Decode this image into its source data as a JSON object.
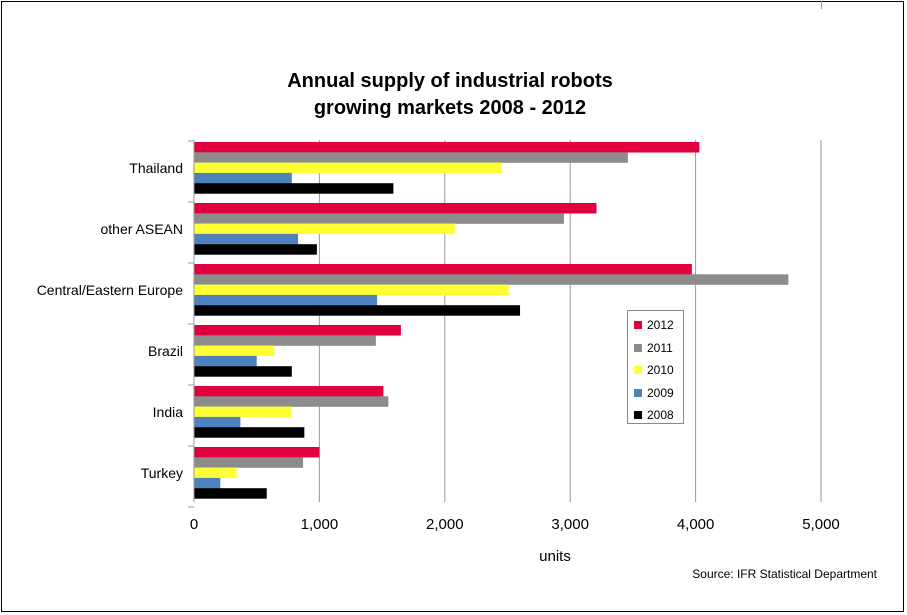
{
  "chart_data": {
    "type": "bar",
    "orientation": "horizontal",
    "title": [
      "Annual supply of industrial robots",
      "growing markets 2008 - 2012"
    ],
    "xlabel": "units",
    "ylabel": "",
    "xlim": [
      0,
      5000
    ],
    "x_ticks": [
      0,
      1000,
      2000,
      3000,
      4000,
      5000
    ],
    "x_tick_labels": [
      "0",
      "1,000",
      "2,000",
      "3,000",
      "4,000",
      "5,000"
    ],
    "grid": true,
    "legend_position": "right",
    "categories": [
      "Thailand",
      "other ASEAN",
      "Central/Eastern Europe",
      "Brazil",
      "India",
      "Turkey"
    ],
    "series": [
      {
        "name": "2012",
        "color": "#e0003c",
        "values": [
          4030,
          3210,
          3970,
          1650,
          1510,
          1000
        ]
      },
      {
        "name": "2011",
        "color": "#8c8c8c",
        "values": [
          3460,
          2950,
          4740,
          1450,
          1550,
          870
        ]
      },
      {
        "name": "2010",
        "color": "#ffff33",
        "values": [
          2450,
          2080,
          2510,
          640,
          780,
          340
        ]
      },
      {
        "name": "2009",
        "color": "#4f81bd",
        "values": [
          780,
          830,
          1460,
          500,
          370,
          210
        ]
      },
      {
        "name": "2008",
        "color": "#000000",
        "values": [
          1590,
          980,
          2600,
          780,
          880,
          580
        ]
      }
    ],
    "source": "Source: IFR Statistical Department"
  }
}
